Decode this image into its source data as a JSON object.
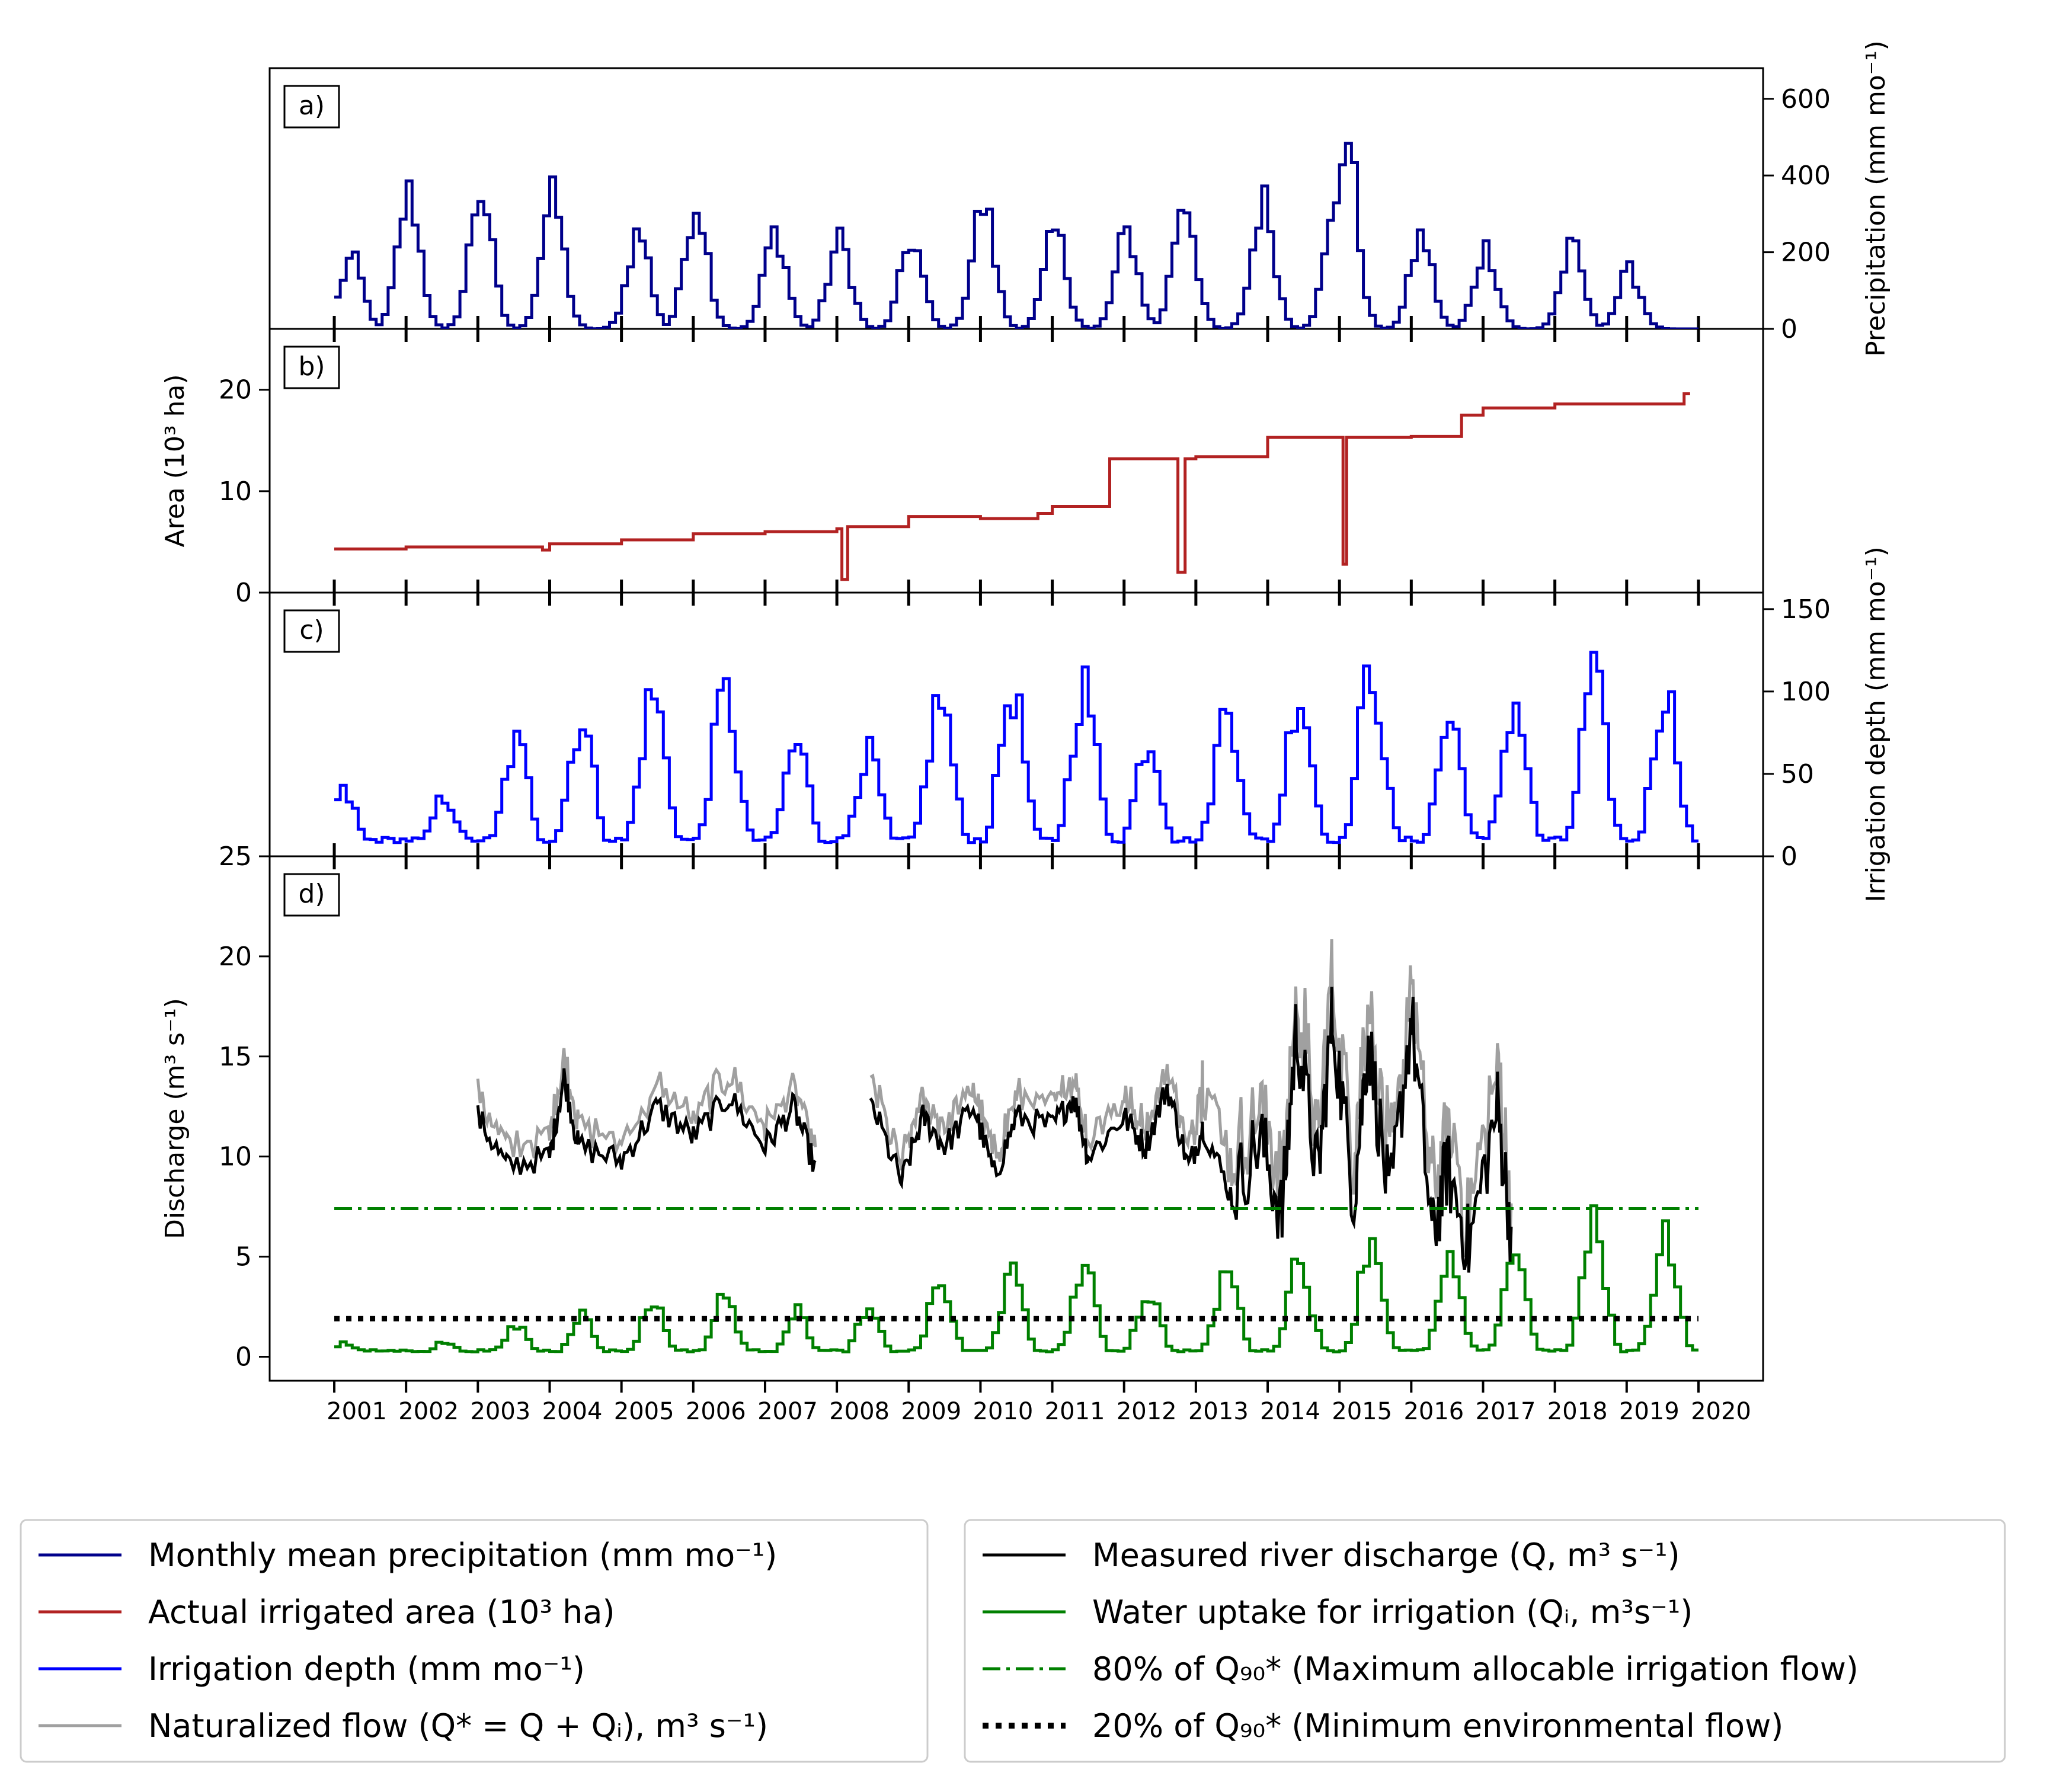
{
  "chart_data": [
    {
      "panel": "a)",
      "type": "line",
      "series": [
        {
          "name": "Monthly mean precipitation (mm mo⁻¹)",
          "color": "#00008b"
        }
      ],
      "ylabel": "Precipitation (mm mo⁻¹)",
      "ylim": [
        0,
        680
      ],
      "yticks": [
        "0",
        "200",
        "400",
        "600"
      ],
      "peaks": {
        "x": [
          2001.2,
          2002.0,
          2003.0,
          2004.0,
          2005.2,
          2006.0,
          2007.1,
          2008.0,
          2009.0,
          2010.0,
          2011.0,
          2012.0,
          2012.8,
          2013.9,
          2014.9,
          2015.05,
          2016.1,
          2017.0,
          2018.2,
          2019.0
        ],
        "y": [
          180,
          350,
          360,
          340,
          250,
          330,
          250,
          230,
          230,
          320,
          250,
          250,
          340,
          330,
          290,
          500,
          240,
          210,
          210,
          150
        ]
      }
    },
    {
      "panel": "b)",
      "type": "line",
      "series": [
        {
          "name": "Actual irrigated area (10³ ha)",
          "color": "#b22222",
          "x": [
            2001.0,
            2002.0,
            2003.0,
            2003.9,
            2004.0,
            2005.0,
            2006.0,
            2007.0,
            2008.0,
            2008.07,
            2008.15,
            2009.0,
            2010.0,
            2010.8,
            2011.0,
            2011.8,
            2012.7,
            2012.75,
            2012.85,
            2013.0,
            2013.8,
            2014.0,
            2015.0,
            2015.05,
            2015.1,
            2016.0,
            2016.7,
            2017.0,
            2018.0,
            2019.8
          ],
          "y": [
            4.3,
            4.5,
            4.5,
            4.2,
            4.8,
            5.2,
            5.8,
            6.0,
            6.3,
            1.3,
            6.5,
            7.5,
            7.3,
            7.8,
            8.5,
            13.2,
            13.2,
            2.0,
            13.2,
            13.4,
            13.4,
            15.3,
            15.3,
            2.8,
            15.3,
            15.4,
            17.5,
            18.2,
            18.6,
            19.6
          ]
        }
      ],
      "ylabel": "Area (10³ ha)",
      "ylim": [
        0,
        26
      ],
      "yticks": [
        "0",
        "10",
        "20"
      ]
    },
    {
      "panel": "c)",
      "type": "line",
      "series": [
        {
          "name": "Irrigation depth (mm mo⁻¹)",
          "color": "#0000ff"
        }
      ],
      "ylabel": "Irrigation depth (mm mo⁻¹)",
      "ylim": [
        0,
        160
      ],
      "yticks": [
        "0",
        "50",
        "100",
        "150"
      ],
      "peaks": {
        "x": [
          2001.1,
          2002.5,
          2003.5,
          2004.4,
          2005.4,
          2006.4,
          2007.4,
          2008.4,
          2009.4,
          2010.4,
          2011.4,
          2012.3,
          2013.4,
          2014.4,
          2015.4,
          2016.5,
          2017.4,
          2018.5,
          2019.5
        ],
        "y": [
          38,
          36,
          68,
          82,
          98,
          98,
          68,
          62,
          95,
          100,
          103,
          70,
          90,
          98,
          112,
          82,
          92,
          108,
          100
        ]
      }
    },
    {
      "panel": "d)",
      "type": "line",
      "ylabel": "Discharge (m³ s⁻¹)",
      "ylim": [
        -1.2,
        25
      ],
      "yticks": [
        "0",
        "5",
        "10",
        "15",
        "20",
        "25"
      ],
      "xlim": [
        2000.1,
        2020.9
      ],
      "x_tick_labels": [
        "2001",
        "2002",
        "2003",
        "2004",
        "2005",
        "2006",
        "2007",
        "2008",
        "2009",
        "2010",
        "2011",
        "2012",
        "2013",
        "2014",
        "2015",
        "2016",
        "2017",
        "2018",
        "2019",
        "2020"
      ],
      "series": [
        {
          "name": "Measured river discharge (Q, m³ s⁻¹)",
          "color": "#000000",
          "x": [
            2003.0,
            2003.4,
            2004.0,
            2004.2,
            2004.4,
            2005.0,
            2005.5,
            2006.0,
            2006.5,
            2007.0,
            2007.4,
            2007.7,
            2008.5,
            2008.9,
            2009.2,
            2009.5,
            2009.9,
            2010.2,
            2010.5,
            2011.0,
            2011.3,
            2011.5,
            2012.0,
            2012.3,
            2012.6,
            2012.9,
            2013.1,
            2013.5,
            2013.9,
            2014.2,
            2014.4,
            2014.7,
            2014.9,
            2015.2,
            2015.4,
            2015.7,
            2016.0,
            2016.3,
            2016.5,
            2016.8,
            2017.2,
            2017.4
          ],
          "y": [
            12.0,
            9.5,
            10.0,
            14.0,
            10.5,
            9.8,
            12.5,
            11.0,
            13.0,
            10.5,
            12.5,
            9.4,
            12.5,
            8.7,
            12.0,
            10.5,
            12.5,
            9.0,
            12.0,
            11.5,
            13.0,
            10.0,
            12.0,
            10.5,
            13.5,
            9.5,
            11.5,
            8.0,
            11.0,
            7.0,
            16.5,
            9.0,
            17.0,
            8.0,
            16.0,
            7.5,
            17.0,
            6.0,
            9.5,
            5.5,
            12.5,
            6.0
          ]
        },
        {
          "name": "Water uptake for irrigation (Qᵢ, m³s⁻¹)",
          "color": "#008000"
        },
        {
          "name": "Naturalized flow (Q* = Q + Qᵢ), m³ s⁻¹)",
          "color": "#a0a0a0"
        },
        {
          "name": "80% of  Q₉₀* (Maximum allocable irrigation flow)",
          "color": "#008000",
          "constant": 7.4
        },
        {
          "name": "20% of  Q₉₀* (Minimum environmental flow)",
          "color": "#000000",
          "constant": 1.9
        }
      ]
    }
  ],
  "legend": {
    "left": [
      {
        "label": "Monthly mean precipitation (mm mo⁻¹)",
        "color": "#00008b",
        "style": "solid"
      },
      {
        "label": "Actual irrigated area (10³ ha)",
        "color": "#b22222",
        "style": "solid"
      },
      {
        "label": "Irrigation depth (mm mo⁻¹)",
        "color": "#0000ff",
        "style": "solid"
      },
      {
        "label": "Naturalized flow (Q* = Q + Qᵢ), m³ s⁻¹)",
        "color": "#a0a0a0",
        "style": "solid"
      }
    ],
    "right": [
      {
        "label": "Measured river discharge (Q, m³ s⁻¹)",
        "color": "#000000",
        "style": "solid"
      },
      {
        "label": "Water uptake for irrigation (Qᵢ, m³s⁻¹)",
        "color": "#008000",
        "style": "solid"
      },
      {
        "label": "80% of  Q₉₀* (Maximum allocable irrigation flow)",
        "color": "#008000",
        "style": "dashdot"
      },
      {
        "label": "20% of  Q₉₀* (Minimum environmental flow)",
        "color": "#000000",
        "style": "dotted"
      }
    ]
  }
}
